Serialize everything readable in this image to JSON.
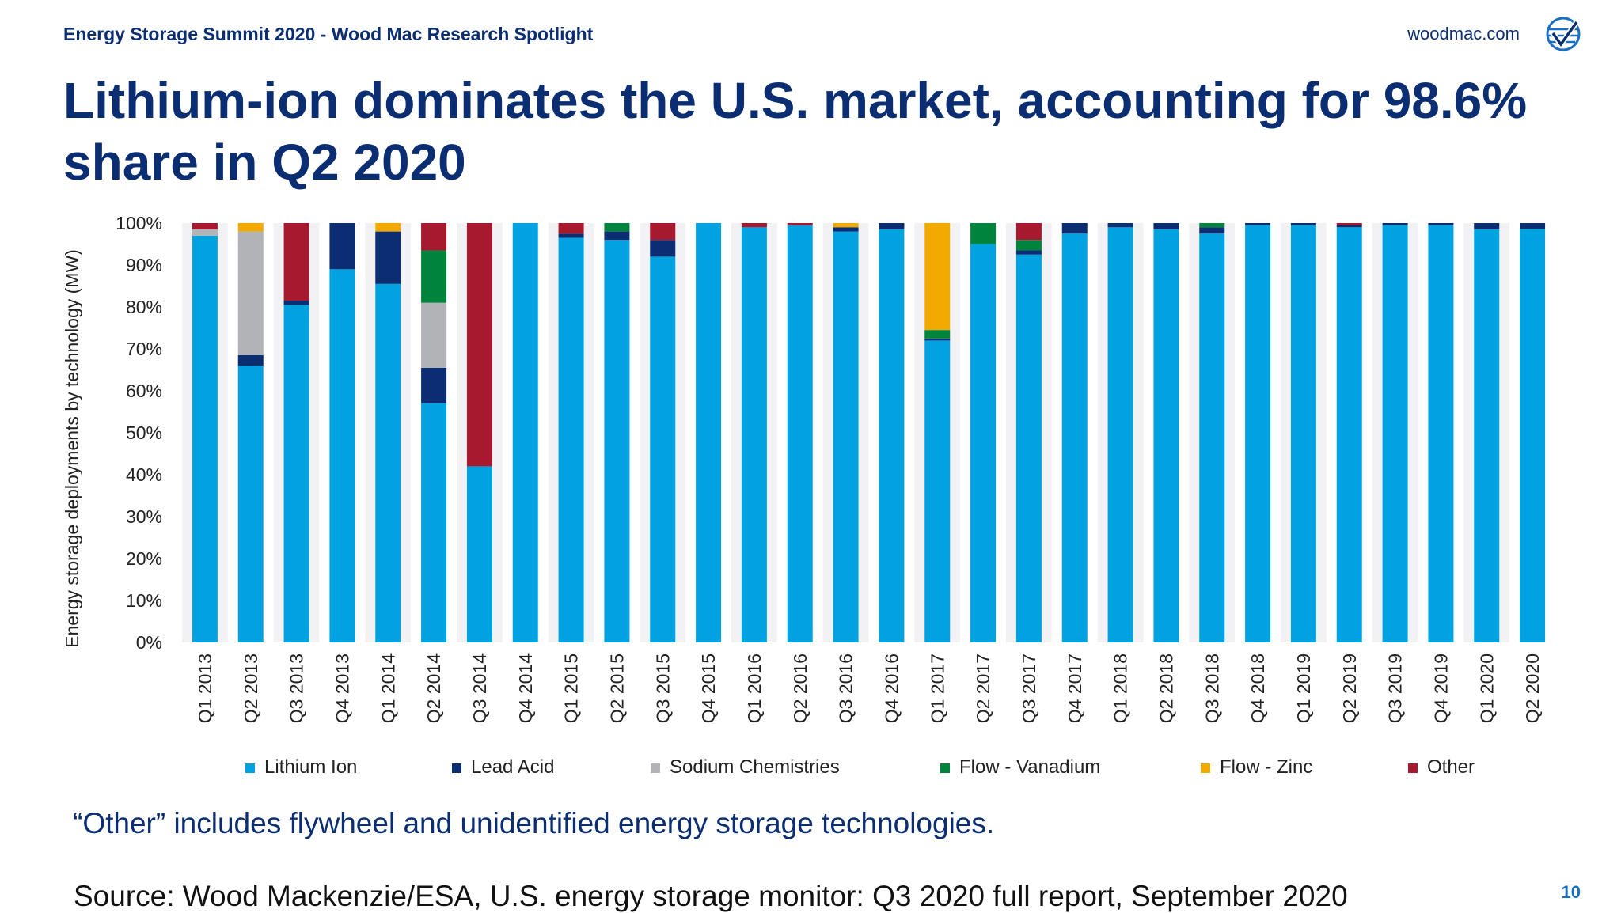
{
  "header": {
    "event": "Energy Storage Summit 2020 - Wood Mac Research Spotlight",
    "website": "woodmac.com"
  },
  "title": "Lithium-ion dominates the U.S. market, accounting for 98.6% share in Q2 2020",
  "note": "“Other” includes flywheel and unidentified energy storage technologies.",
  "source": "Source: Wood Mackenzie/ESA, U.S. energy storage monitor: Q3 2020 full report, September 2020",
  "page_number": "10",
  "logo_icon": "woodmac-globe-icon",
  "chart_data": {
    "type": "bar",
    "stacked": true,
    "title": "",
    "xlabel": "",
    "ylabel": "Energy storage deployments by technology (MW)",
    "ylim": [
      0,
      100
    ],
    "yticks": [
      "0%",
      "10%",
      "20%",
      "30%",
      "40%",
      "50%",
      "60%",
      "70%",
      "80%",
      "90%",
      "100%"
    ],
    "legend_position": "bottom",
    "categories": [
      "Q1 2013",
      "Q2 2013",
      "Q3 2013",
      "Q4 2013",
      "Q1 2014",
      "Q2 2014",
      "Q3 2014",
      "Q4 2014",
      "Q1 2015",
      "Q2 2015",
      "Q3 2015",
      "Q4 2015",
      "Q1 2016",
      "Q2 2016",
      "Q3 2016",
      "Q4 2016",
      "Q1 2017",
      "Q2 2017",
      "Q3 2017",
      "Q4 2017",
      "Q1 2018",
      "Q2 2018",
      "Q3 2018",
      "Q4 2018",
      "Q1 2019",
      "Q2 2019",
      "Q3 2019",
      "Q4 2019",
      "Q1 2020",
      "Q2 2020"
    ],
    "series": [
      {
        "name": "Lithium Ion",
        "color": "#00a3e0",
        "values": [
          97,
          66,
          80.5,
          89,
          85.5,
          57,
          42,
          100,
          96.5,
          96,
          92,
          100,
          99,
          99.5,
          98,
          98.5,
          72,
          95,
          92.5,
          97.5,
          99,
          98.5,
          97.5,
          99.5,
          99.5,
          99,
          99.5,
          99.5,
          98.5,
          98.6
        ]
      },
      {
        "name": "Lead Acid",
        "color": "#0b2d72",
        "values": [
          0,
          2.5,
          1,
          11,
          12.5,
          8.5,
          0,
          0,
          1,
          2,
          4,
          0,
          0,
          0,
          1,
          1.5,
          0.5,
          0,
          1,
          2.5,
          1,
          1.5,
          1.5,
          0.5,
          0.5,
          0.5,
          0.5,
          0.5,
          1.5,
          1.4
        ]
      },
      {
        "name": "Sodium Chemistries",
        "color": "#b1b3b6",
        "values": [
          1.5,
          29.5,
          0,
          0,
          0,
          15.5,
          0,
          0,
          0,
          0,
          0,
          0,
          0,
          0,
          0,
          0,
          0,
          0,
          0,
          0,
          0,
          0,
          0,
          0,
          0,
          0,
          0,
          0,
          0,
          0
        ]
      },
      {
        "name": "Flow - Vanadium",
        "color": "#00843d",
        "values": [
          0,
          0,
          0,
          0,
          0,
          12.5,
          0,
          0,
          0,
          2,
          0,
          0,
          0,
          0,
          0,
          0,
          2,
          5,
          2.5,
          0,
          0,
          0,
          1,
          0,
          0,
          0,
          0,
          0,
          0,
          0
        ]
      },
      {
        "name": "Flow - Zinc",
        "color": "#f2a900",
        "values": [
          0,
          2,
          0,
          0,
          2,
          0,
          0,
          0,
          0,
          0,
          0,
          0,
          0,
          0,
          1,
          0,
          25.5,
          0,
          0,
          0,
          0,
          0,
          0,
          0,
          0,
          0,
          0,
          0,
          0,
          0
        ]
      },
      {
        "name": "Other",
        "color": "#a6192e",
        "values": [
          1.5,
          0,
          18.5,
          0,
          0,
          6.5,
          58,
          0,
          2.5,
          0,
          4,
          0,
          1,
          0.5,
          0,
          0,
          0,
          0,
          4,
          0,
          0,
          0,
          0,
          0,
          0,
          0.5,
          0,
          0,
          0,
          0
        ]
      }
    ]
  }
}
